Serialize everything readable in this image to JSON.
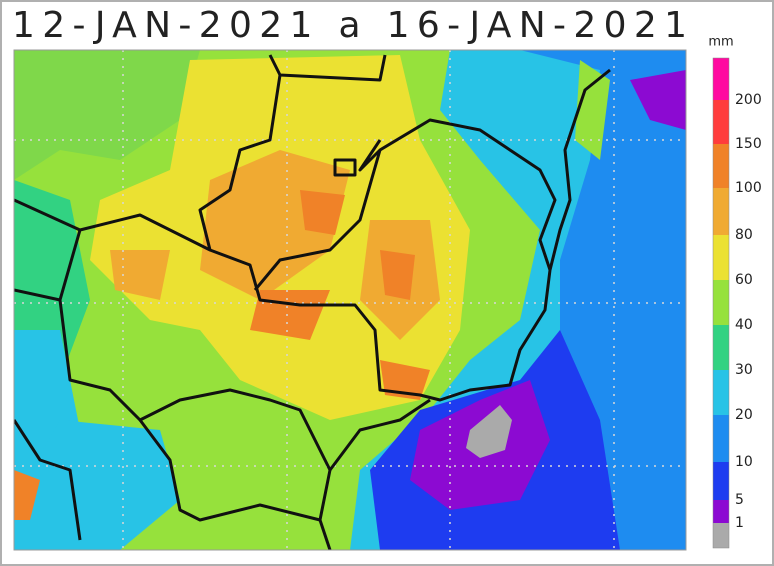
{
  "title": "12-JAN-2021 a 16-JAN-2021",
  "legend": {
    "unit": "mm",
    "labels": [
      "200",
      "150",
      "100",
      "80",
      "60",
      "40",
      "30",
      "20",
      "10",
      "5",
      "1"
    ],
    "colors": [
      "#ff0aa0",
      "#ff3c3c",
      "#f08228",
      "#f0aa32",
      "#ebe132",
      "#96e13c",
      "#32d282",
      "#28c3e6",
      "#1e8cf0",
      "#1e3cf0",
      "#8c0ad2",
      "#aaaaaa"
    ]
  }
}
